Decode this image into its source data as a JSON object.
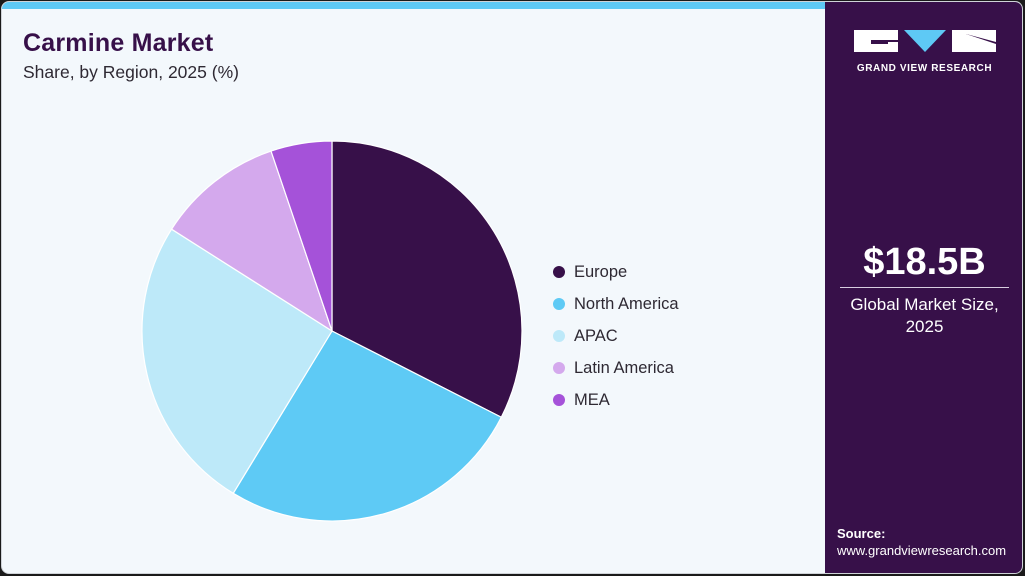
{
  "header": {
    "title": "Carmine Market",
    "subtitle": "Share, by Region, 2025 (%)"
  },
  "legend": [
    {
      "label": "Europe",
      "color": "#371049"
    },
    {
      "label": "North America",
      "color": "#5ecaf5"
    },
    {
      "label": "APAC",
      "color": "#bde9f9"
    },
    {
      "label": "Latin America",
      "color": "#d4a9ed"
    },
    {
      "label": "MEA",
      "color": "#a552d9"
    }
  ],
  "sidebar": {
    "brand": "GRAND VIEW RESEARCH",
    "market_size": "$18.5B",
    "market_size_label_line1": "Global Market Size,",
    "market_size_label_line2": "2025",
    "source_label": "Source:",
    "source_url": "www.grandviewresearch.com"
  },
  "colors": {
    "accent_bar": "#5ec9f5",
    "panel": "#371049",
    "background": "#f3f8fc"
  },
  "chart_data": {
    "type": "pie",
    "title": "Carmine Market",
    "subtitle": "Share, by Region, 2025 (%)",
    "categories": [
      "Europe",
      "North America",
      "APAC",
      "Latin America",
      "MEA"
    ],
    "values": [
      32.5,
      26.2,
      25.3,
      10.8,
      5.2
    ],
    "colors": [
      "#371049",
      "#5ecaf5",
      "#bde9f9",
      "#d4a9ed",
      "#a552d9"
    ],
    "start_angle": "12 o'clock, clockwise",
    "legend_position": "right",
    "data_labels": false
  }
}
